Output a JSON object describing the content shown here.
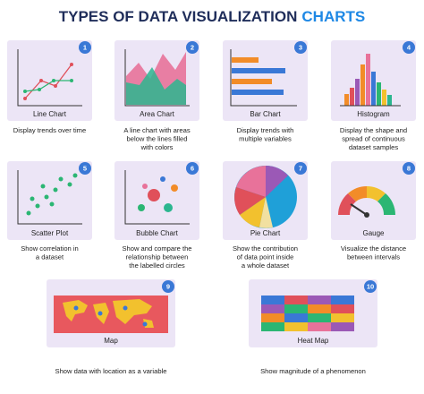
{
  "title_main": "TYPES OF DATA VISUALIZATION",
  "title_accent": "CHARTS",
  "cards": [
    {
      "number": 1,
      "label": "Line Chart",
      "description": [
        "Display trends over time"
      ]
    },
    {
      "number": 2,
      "label": "Area Chart",
      "description": [
        "A line chart with areas",
        "below the lines filled",
        "with colors"
      ]
    },
    {
      "number": 3,
      "label": "Bar Chart",
      "description": [
        "Display trends with",
        "multiple variables"
      ]
    },
    {
      "number": 4,
      "label": "Histogram",
      "description": [
        "Display the shape and",
        "spread of continuous",
        "dataset samples"
      ]
    },
    {
      "number": 5,
      "label": "Scatter Plot",
      "description": [
        "Show correlation in",
        "a dataset"
      ]
    },
    {
      "number": 6,
      "label": "Bubble Chart",
      "description": [
        "Show and compare the",
        "relationship between",
        "the labelled circles"
      ]
    },
    {
      "number": 7,
      "label": "Pie Chart",
      "description": [
        "Show the contribution",
        "of data point inside",
        "a whole dataset"
      ]
    },
    {
      "number": 8,
      "label": "Gauge",
      "description": [
        "Visualize the distance",
        "between intervals"
      ]
    },
    {
      "number": 9,
      "label": "Map",
      "description": [
        "Show data with location as a variable"
      ]
    },
    {
      "number": 10,
      "label": "Heat Map",
      "description": [
        "Show magnitude of a phenomenon"
      ]
    }
  ]
}
